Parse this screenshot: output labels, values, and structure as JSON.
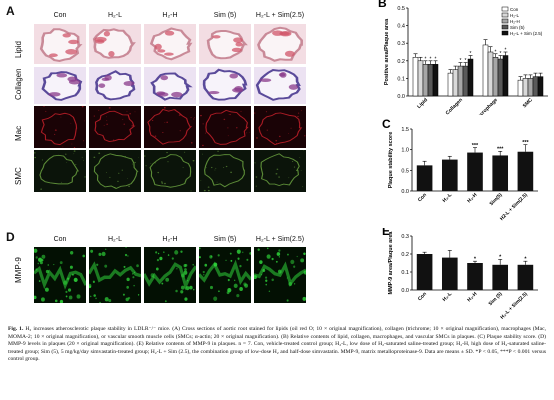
{
  "panelA": {
    "letter": "A",
    "columns": [
      "Con",
      "H₂-L",
      "H₂-H",
      "Sim (5)",
      "H₂-L + Sim(2.5)"
    ],
    "rows": [
      {
        "label": "Lipid",
        "kind": "lipid",
        "bg": "#f3dde3",
        "wall": "#c98a98"
      },
      {
        "label": "Collagen",
        "kind": "collagen",
        "bg": "#ece2f2",
        "wall": "#5a4a9a"
      },
      {
        "label": "Mac",
        "kind": "mac",
        "bg": "#1a0306",
        "wall": "#c4202a"
      },
      {
        "label": "SMC",
        "kind": "smc",
        "bg": "#0b140a",
        "wall": "#6aa040"
      }
    ]
  },
  "panelD": {
    "letter": "D",
    "columns": [
      "Con",
      "H₂-L",
      "H₂-H",
      "Sim (5)",
      "H₂-L + Sim(2.5)"
    ],
    "row_label": "MMP-9",
    "bg": "#031003",
    "fg": "#2fd43a"
  },
  "chart_data": [
    {
      "letter": "B",
      "type": "bar",
      "ylabel": "Positive area/Plaque area",
      "categories": [
        "Lipid",
        "Collagen",
        "Macrophage",
        "SMC"
      ],
      "ylim": [
        0,
        0.5
      ],
      "yticks": [
        "0.0",
        "0.1",
        "0.2",
        "0.3",
        "0.4",
        "0.5"
      ],
      "legend_placement": "top-right",
      "series": [
        {
          "name": "Con",
          "fill": "#ffffff",
          "values": [
            0.22,
            0.13,
            0.29,
            0.09
          ],
          "errors": [
            0.02,
            0.02,
            0.03,
            0.02
          ],
          "stars": [
            "",
            "",
            "",
            ""
          ]
        },
        {
          "name": "H₂-L",
          "fill": "#d9d9d9",
          "values": [
            0.2,
            0.15,
            0.25,
            0.1
          ],
          "errors": [
            0.02,
            0.02,
            0.03,
            0.02
          ],
          "stars": [
            "",
            "",
            "",
            ""
          ]
        },
        {
          "name": "H₂-H",
          "fill": "#a6a6a6",
          "values": [
            0.18,
            0.17,
            0.22,
            0.1
          ],
          "errors": [
            0.02,
            0.02,
            0.02,
            0.02
          ],
          "stars": [
            "*",
            "*",
            "*",
            ""
          ]
        },
        {
          "name": "Sim (5)",
          "fill": "#595959",
          "values": [
            0.18,
            0.17,
            0.21,
            0.11
          ],
          "errors": [
            0.02,
            0.02,
            0.02,
            0.02
          ],
          "stars": [
            "*",
            "*",
            "*",
            ""
          ]
        },
        {
          "name": "H₂-L + Sim (2.5)",
          "fill": "#111111",
          "values": [
            0.18,
            0.21,
            0.23,
            0.11
          ],
          "errors": [
            0.02,
            0.02,
            0.02,
            0.02
          ],
          "stars": [
            "*",
            "*",
            "*",
            ""
          ]
        }
      ]
    },
    {
      "letter": "C",
      "type": "bar",
      "ylabel": "Plaque stability score",
      "categories": [
        "Con",
        "H₂-L",
        "H₂-H",
        "Sim(5)",
        "H2-L + Sim(2.5)"
      ],
      "values": [
        0.62,
        0.76,
        0.93,
        0.86,
        0.95
      ],
      "errors": [
        0.1,
        0.08,
        0.12,
        0.1,
        0.17
      ],
      "stars": [
        "",
        "",
        "***",
        "***",
        "***"
      ],
      "ylim": [
        0,
        1.5
      ],
      "yticks": [
        "0.0",
        "0.5",
        "1.0",
        "1.5"
      ],
      "fill": "#111111"
    },
    {
      "letter": "E",
      "type": "bar",
      "ylabel": "MMP-9 area/Plaque area",
      "categories": [
        "Con",
        "H₂-L",
        "H₂-H",
        "Sim (5)",
        "H₂-L + Sim(2.5)"
      ],
      "values": [
        0.2,
        0.18,
        0.15,
        0.14,
        0.14
      ],
      "errors": [
        0.01,
        0.04,
        0.01,
        0.03,
        0.02
      ],
      "stars": [
        "",
        "",
        "*",
        "*",
        "*"
      ],
      "ylim": [
        0,
        0.3
      ],
      "yticks": [
        "0.0",
        "0.1",
        "0.2",
        "0.3"
      ],
      "fill": "#111111"
    }
  ],
  "caption": {
    "lead": "Fig. 1.",
    "text": " H₂ increases atherosclerotic plaque stability in LDLR⁻/⁻ mice. (A) Cross sections of aortic root stained for lipids (oil red O; 10 × original magnification), collagen (trichrome; 10 × original magnification), macrophages (Mac, MOMA-2; 10 × original magnification), or vascular smooth muscle cells (SMCs; α-actin; 20 × original magnification). (B) Relative contents of lipid, collagen, macrophages, and vascular SMCs in plaques. (C) Plaque stability score. (D) MMP-9 levels in plaques (20 × original magnification). (E) Relative contents of MMP-9 in plaques. n = 7. Con, vehicle-treated control group; H₂-L, low dose of H₂-saturated saline-treated group; H₂-H, high dose of H₂-saturated saline-treated group; Sim (5), 5 mg/kg/day simvastatin-treated group; H₂-L + Sim (2.5), the combination group of low-dose H₂ and half-dose simvastatin. MMP-9, matrix metalloproteinase-9. Data are means ± SD. *P < 0.05, ***P < 0.001 versus control group."
  }
}
